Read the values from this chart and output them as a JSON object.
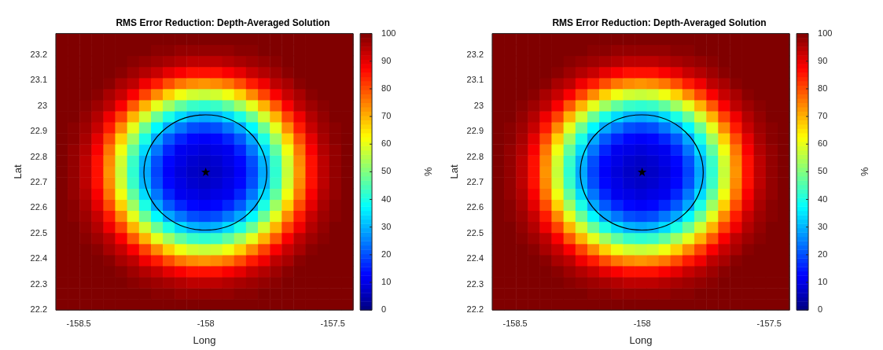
{
  "chart_data": [
    {
      "type": "heatmap",
      "title": "RMS Error Reduction: Depth-Averaged Solution",
      "xlabel": "Long",
      "ylabel": "Lat",
      "clabel": "%",
      "x": [
        -158.567,
        -158.52,
        -158.473,
        -158.426,
        -158.38,
        -158.333,
        -158.286,
        -158.239,
        -158.192,
        -158.146,
        -158.099,
        -158.052,
        -158.005,
        -157.958,
        -157.912,
        -157.865,
        -157.818,
        -157.771,
        -157.724,
        -157.678,
        -157.631,
        -157.584,
        -157.537,
        -157.49,
        -157.443
      ],
      "y": [
        22.222,
        22.265,
        22.308,
        22.352,
        22.395,
        22.438,
        22.482,
        22.525,
        22.569,
        22.612,
        22.655,
        22.699,
        22.742,
        22.785,
        22.829,
        22.872,
        22.916,
        22.959,
        23.002,
        23.046,
        23.089,
        23.132,
        23.176,
        23.219,
        23.262
      ],
      "xlim": [
        -158.59,
        -157.42
      ],
      "ylim": [
        22.2,
        23.284
      ],
      "xticks": [
        -158.5,
        -158,
        -157.5
      ],
      "yticks": [
        22.2,
        22.3,
        22.4,
        22.5,
        22.6,
        22.7,
        22.8,
        22.9,
        23,
        23.1,
        23.2
      ],
      "clim": [
        0,
        100
      ],
      "cticks": [
        0,
        10,
        20,
        30,
        40,
        50,
        60,
        70,
        80,
        90,
        100
      ],
      "grid": false,
      "legend": false,
      "marker": "star",
      "series": [
        {
          "type": "scatter",
          "x": [
            -158
          ],
          "values": [
            22.74
          ],
          "color": "#000000"
        }
      ],
      "cells": [
        [
          100,
          100,
          100,
          100,
          100,
          100,
          100,
          100,
          100,
          100,
          100,
          100,
          100,
          100,
          100,
          100,
          100,
          100,
          100,
          100,
          100,
          100,
          100,
          100,
          100
        ],
        [
          100,
          100,
          100,
          100,
          100,
          100,
          100,
          100,
          99,
          99,
          98,
          98,
          98,
          98,
          98,
          99,
          99,
          100,
          100,
          100,
          100,
          100,
          100,
          100,
          100
        ],
        [
          100,
          100,
          100,
          100,
          100,
          100,
          99,
          98,
          97,
          96,
          95,
          94,
          94,
          94,
          95,
          96,
          97,
          98,
          99,
          100,
          100,
          100,
          100,
          100,
          100
        ],
        [
          100,
          100,
          100,
          100,
          100,
          99,
          97,
          95,
          93,
          90,
          88,
          86,
          86,
          86,
          88,
          90,
          93,
          95,
          97,
          99,
          100,
          100,
          100,
          100,
          100
        ],
        [
          100,
          100,
          100,
          100,
          99,
          96,
          94,
          89,
          85,
          80,
          76,
          74,
          73,
          74,
          76,
          80,
          85,
          89,
          94,
          96,
          99,
          100,
          100,
          100,
          100
        ],
        [
          100,
          100,
          100,
          99,
          96,
          93,
          88,
          81,
          74,
          67,
          61,
          58,
          57,
          58,
          61,
          67,
          74,
          81,
          88,
          93,
          96,
          99,
          100,
          100,
          100
        ],
        [
          100,
          100,
          99,
          97,
          94,
          88,
          79,
          70,
          60,
          53,
          47,
          43,
          42,
          43,
          47,
          53,
          60,
          70,
          79,
          88,
          94,
          97,
          99,
          100,
          100
        ],
        [
          100,
          100,
          98,
          95,
          89,
          81,
          70,
          58,
          48,
          40,
          34,
          30,
          29,
          30,
          34,
          40,
          48,
          58,
          70,
          81,
          89,
          95,
          98,
          100,
          100
        ],
        [
          100,
          99,
          97,
          93,
          85,
          74,
          60,
          48,
          37,
          29,
          24,
          20,
          19,
          20,
          24,
          29,
          37,
          48,
          60,
          74,
          85,
          93,
          97,
          99,
          100
        ],
        [
          100,
          99,
          96,
          90,
          80,
          67,
          53,
          40,
          29,
          21,
          16,
          13,
          12,
          13,
          16,
          21,
          29,
          40,
          53,
          67,
          80,
          90,
          96,
          99,
          100
        ],
        [
          100,
          98,
          95,
          88,
          76,
          61,
          47,
          34,
          24,
          16,
          11,
          10,
          9,
          10,
          11,
          16,
          24,
          34,
          47,
          61,
          76,
          88,
          95,
          98,
          100
        ],
        [
          100,
          98,
          94,
          86,
          74,
          58,
          43,
          30,
          20,
          13,
          10,
          8,
          7,
          8,
          10,
          13,
          20,
          30,
          43,
          58,
          74,
          86,
          94,
          98,
          100
        ],
        [
          100,
          98,
          94,
          86,
          73,
          57,
          42,
          29,
          19,
          12,
          9,
          7,
          6,
          7,
          9,
          12,
          19,
          29,
          42,
          57,
          73,
          86,
          94,
          98,
          100
        ],
        [
          100,
          98,
          94,
          86,
          74,
          58,
          43,
          30,
          20,
          13,
          10,
          8,
          7,
          8,
          10,
          13,
          20,
          30,
          43,
          58,
          74,
          86,
          94,
          98,
          100
        ],
        [
          100,
          98,
          95,
          88,
          76,
          61,
          47,
          34,
          24,
          16,
          11,
          10,
          9,
          10,
          11,
          16,
          24,
          34,
          47,
          61,
          76,
          88,
          95,
          98,
          100
        ],
        [
          100,
          99,
          96,
          90,
          80,
          67,
          53,
          40,
          29,
          21,
          16,
          13,
          12,
          13,
          16,
          21,
          29,
          40,
          53,
          67,
          80,
          90,
          96,
          99,
          100
        ],
        [
          100,
          99,
          97,
          93,
          85,
          74,
          60,
          48,
          37,
          29,
          24,
          20,
          19,
          20,
          24,
          29,
          37,
          48,
          60,
          74,
          85,
          93,
          97,
          99,
          100
        ],
        [
          100,
          100,
          98,
          95,
          89,
          81,
          70,
          58,
          48,
          40,
          34,
          30,
          29,
          30,
          34,
          40,
          48,
          58,
          70,
          81,
          89,
          95,
          98,
          100,
          100
        ],
        [
          100,
          100,
          99,
          97,
          94,
          88,
          79,
          70,
          60,
          53,
          47,
          43,
          42,
          43,
          47,
          53,
          60,
          70,
          79,
          88,
          94,
          97,
          99,
          100,
          100
        ],
        [
          100,
          100,
          100,
          99,
          96,
          93,
          88,
          81,
          74,
          67,
          61,
          58,
          57,
          58,
          61,
          67,
          74,
          81,
          88,
          93,
          96,
          99,
          100,
          100,
          100
        ],
        [
          100,
          100,
          100,
          100,
          99,
          96,
          94,
          89,
          85,
          80,
          76,
          74,
          73,
          74,
          76,
          80,
          85,
          89,
          94,
          96,
          99,
          100,
          100,
          100,
          100
        ],
        [
          100,
          100,
          100,
          100,
          100,
          99,
          97,
          95,
          93,
          90,
          88,
          86,
          86,
          86,
          88,
          90,
          93,
          95,
          97,
          99,
          100,
          100,
          100,
          100,
          100
        ],
        [
          100,
          100,
          100,
          100,
          100,
          100,
          99,
          98,
          97,
          96,
          95,
          94,
          94,
          94,
          95,
          96,
          97,
          98,
          99,
          100,
          100,
          100,
          100,
          100,
          100
        ],
        [
          100,
          100,
          100,
          100,
          100,
          100,
          100,
          100,
          99,
          99,
          98,
          98,
          98,
          98,
          98,
          99,
          99,
          100,
          100,
          100,
          100,
          100,
          100,
          100,
          100
        ],
        [
          100,
          100,
          100,
          100,
          100,
          100,
          100,
          100,
          100,
          100,
          100,
          100,
          100,
          100,
          100,
          100,
          100,
          100,
          100,
          100,
          100,
          100,
          100,
          100,
          100
        ]
      ]
    },
    {
      "type": "heatmap",
      "title": "RMS Error Reduction: Depth-Averaged Solution",
      "xlabel": "Long",
      "ylabel": "Lat",
      "clabel": "%",
      "x": [
        -158.567,
        -158.52,
        -158.473,
        -158.426,
        -158.38,
        -158.333,
        -158.286,
        -158.239,
        -158.192,
        -158.146,
        -158.099,
        -158.052,
        -158.005,
        -157.958,
        -157.912,
        -157.865,
        -157.818,
        -157.771,
        -157.724,
        -157.678,
        -157.631,
        -157.584,
        -157.537,
        -157.49,
        -157.443
      ],
      "y": [
        22.222,
        22.265,
        22.308,
        22.352,
        22.395,
        22.438,
        22.482,
        22.525,
        22.569,
        22.612,
        22.655,
        22.699,
        22.742,
        22.785,
        22.829,
        22.872,
        22.916,
        22.959,
        23.002,
        23.046,
        23.089,
        23.132,
        23.176,
        23.219,
        23.262
      ],
      "xlim": [
        -158.59,
        -157.42
      ],
      "ylim": [
        22.2,
        23.284
      ],
      "xticks": [
        -158.5,
        -158,
        -157.5
      ],
      "yticks": [
        22.2,
        22.3,
        22.4,
        22.5,
        22.6,
        22.7,
        22.8,
        22.9,
        23,
        23.1,
        23.2
      ],
      "clim": [
        0,
        100
      ],
      "cticks": [
        0,
        10,
        20,
        30,
        40,
        50,
        60,
        70,
        80,
        90,
        100
      ],
      "grid": false,
      "legend": false,
      "marker": "star",
      "series": [
        {
          "type": "scatter",
          "x": [
            -158
          ],
          "values": [
            22.74
          ],
          "color": "#000000"
        }
      ],
      "cells": [
        [
          100,
          100,
          100,
          100,
          100,
          100,
          100,
          100,
          100,
          100,
          100,
          100,
          100,
          100,
          100,
          100,
          100,
          100,
          100,
          100,
          100,
          100,
          100,
          100,
          100
        ],
        [
          100,
          100,
          100,
          100,
          100,
          100,
          100,
          100,
          99,
          99,
          98,
          98,
          98,
          98,
          98,
          99,
          99,
          100,
          100,
          100,
          100,
          100,
          100,
          100,
          100
        ],
        [
          100,
          100,
          100,
          100,
          100,
          100,
          99,
          98,
          97,
          96,
          95,
          94,
          94,
          94,
          95,
          96,
          97,
          98,
          99,
          100,
          100,
          100,
          100,
          100,
          100
        ],
        [
          100,
          100,
          100,
          100,
          100,
          99,
          97,
          95,
          93,
          90,
          88,
          86,
          86,
          86,
          88,
          90,
          93,
          95,
          97,
          99,
          100,
          100,
          100,
          100,
          100
        ],
        [
          100,
          100,
          100,
          100,
          99,
          96,
          94,
          89,
          85,
          80,
          76,
          74,
          73,
          74,
          76,
          80,
          85,
          89,
          94,
          96,
          99,
          100,
          100,
          100,
          100
        ],
        [
          100,
          100,
          100,
          99,
          96,
          93,
          88,
          81,
          74,
          67,
          61,
          58,
          57,
          58,
          61,
          67,
          74,
          81,
          88,
          93,
          96,
          99,
          100,
          100,
          100
        ],
        [
          100,
          100,
          99,
          97,
          94,
          88,
          79,
          70,
          60,
          53,
          47,
          43,
          42,
          43,
          47,
          53,
          60,
          70,
          79,
          88,
          94,
          97,
          99,
          100,
          100
        ],
        [
          100,
          100,
          98,
          95,
          89,
          81,
          70,
          58,
          48,
          40,
          34,
          30,
          29,
          30,
          34,
          40,
          48,
          58,
          70,
          81,
          89,
          95,
          98,
          100,
          100
        ],
        [
          100,
          99,
          97,
          93,
          85,
          74,
          60,
          48,
          37,
          29,
          24,
          20,
          19,
          20,
          24,
          29,
          37,
          48,
          60,
          74,
          85,
          93,
          97,
          99,
          100
        ],
        [
          100,
          99,
          96,
          90,
          80,
          67,
          53,
          40,
          29,
          21,
          16,
          13,
          12,
          13,
          16,
          21,
          29,
          40,
          53,
          67,
          80,
          90,
          96,
          99,
          100
        ],
        [
          100,
          98,
          95,
          88,
          76,
          61,
          47,
          34,
          24,
          16,
          11,
          10,
          9,
          10,
          11,
          16,
          24,
          34,
          47,
          61,
          76,
          88,
          95,
          98,
          100
        ],
        [
          100,
          98,
          94,
          86,
          74,
          58,
          43,
          30,
          20,
          13,
          10,
          8,
          7,
          8,
          10,
          13,
          20,
          30,
          43,
          58,
          74,
          86,
          94,
          98,
          100
        ],
        [
          100,
          98,
          94,
          86,
          73,
          57,
          42,
          29,
          19,
          12,
          9,
          7,
          6,
          7,
          9,
          12,
          19,
          29,
          42,
          57,
          73,
          86,
          94,
          98,
          100
        ],
        [
          100,
          98,
          94,
          86,
          74,
          58,
          43,
          30,
          20,
          13,
          10,
          8,
          7,
          8,
          10,
          13,
          20,
          30,
          43,
          58,
          74,
          86,
          94,
          98,
          100
        ],
        [
          100,
          98,
          95,
          88,
          76,
          61,
          47,
          34,
          24,
          16,
          11,
          10,
          9,
          10,
          11,
          16,
          24,
          34,
          47,
          61,
          76,
          88,
          95,
          98,
          100
        ],
        [
          100,
          99,
          96,
          90,
          80,
          67,
          53,
          40,
          29,
          21,
          16,
          13,
          12,
          13,
          16,
          21,
          29,
          40,
          53,
          67,
          80,
          90,
          96,
          99,
          100
        ],
        [
          100,
          99,
          97,
          93,
          85,
          74,
          60,
          48,
          37,
          29,
          24,
          20,
          19,
          20,
          24,
          29,
          37,
          48,
          60,
          74,
          85,
          93,
          97,
          99,
          100
        ],
        [
          100,
          100,
          98,
          95,
          89,
          81,
          70,
          58,
          48,
          40,
          34,
          30,
          29,
          30,
          34,
          40,
          48,
          58,
          70,
          81,
          89,
          95,
          98,
          100,
          100
        ],
        [
          100,
          100,
          99,
          97,
          94,
          88,
          79,
          70,
          60,
          53,
          47,
          43,
          42,
          43,
          47,
          53,
          60,
          70,
          79,
          88,
          94,
          97,
          99,
          100,
          100
        ],
        [
          100,
          100,
          100,
          99,
          96,
          93,
          88,
          81,
          74,
          67,
          61,
          58,
          57,
          58,
          61,
          67,
          74,
          81,
          88,
          93,
          96,
          99,
          100,
          100,
          100
        ],
        [
          100,
          100,
          100,
          100,
          99,
          96,
          94,
          89,
          85,
          80,
          76,
          74,
          73,
          74,
          76,
          80,
          85,
          89,
          94,
          96,
          99,
          100,
          100,
          100,
          100
        ],
        [
          100,
          100,
          100,
          100,
          100,
          99,
          97,
          95,
          93,
          90,
          88,
          86,
          86,
          86,
          88,
          90,
          93,
          95,
          97,
          99,
          100,
          100,
          100,
          100,
          100
        ],
        [
          100,
          100,
          100,
          100,
          100,
          100,
          99,
          98,
          97,
          96,
          95,
          94,
          94,
          94,
          95,
          96,
          97,
          98,
          99,
          100,
          100,
          100,
          100,
          100,
          100
        ],
        [
          100,
          100,
          100,
          100,
          100,
          100,
          100,
          100,
          99,
          99,
          98,
          98,
          98,
          98,
          98,
          99,
          99,
          100,
          100,
          100,
          100,
          100,
          100,
          100,
          100
        ],
        [
          100,
          100,
          100,
          100,
          100,
          100,
          100,
          100,
          100,
          100,
          100,
          100,
          100,
          100,
          100,
          100,
          100,
          100,
          100,
          100,
          100,
          100,
          100,
          100,
          100
        ]
      ]
    }
  ]
}
